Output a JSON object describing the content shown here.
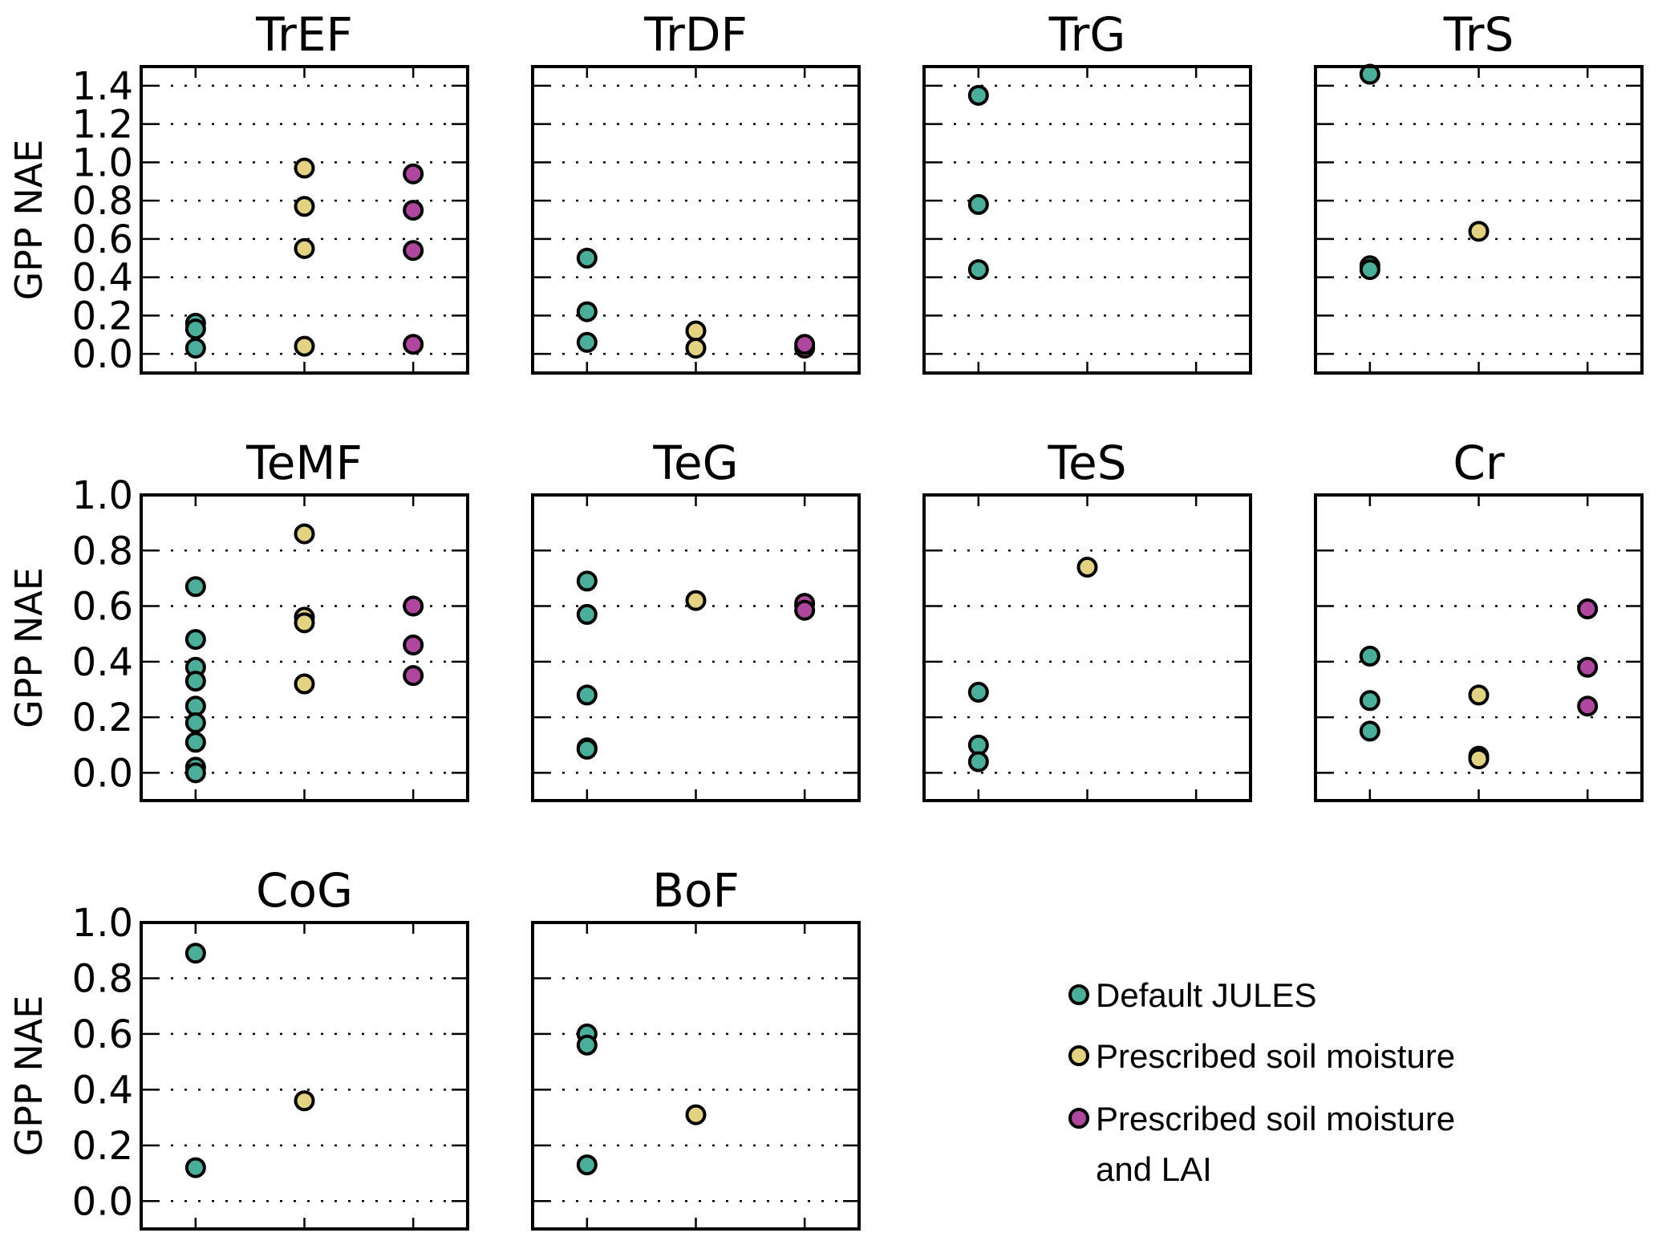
{
  "chart_data": {
    "type": "scatter",
    "title": "",
    "ylabel": "GPP NAE",
    "grid": "horizontal dotted",
    "categories": [
      "Default JULES",
      "Prescribed soil moisture",
      "Prescribed soil moisture and LAI"
    ],
    "legend": {
      "placement": "bottom-right",
      "entries": [
        {
          "label_line1": "Default JULES",
          "label_line2": "",
          "color": "#4aae9b"
        },
        {
          "label_line1": "Prescribed soil moisture",
          "label_line2": "",
          "color": "#e3d282"
        },
        {
          "label_line1": "Prescribed soil moisture",
          "label_line2": "and LAI",
          "color": "#b0479e"
        }
      ]
    },
    "panels": [
      {
        "title": "TrEF",
        "ylim": [
          -0.1,
          1.5
        ],
        "yticks": [
          "0.0",
          "0.2",
          "0.4",
          "0.6",
          "0.8",
          "1.0",
          "1.2",
          "1.4"
        ],
        "show_yticklabels": true,
        "series": [
          {
            "name": "Default JULES",
            "values": [
              0.16,
              0.13,
              0.03
            ]
          },
          {
            "name": "Prescribed soil moisture",
            "values": [
              0.97,
              0.77,
              0.55,
              0.04
            ]
          },
          {
            "name": "Prescribed soil moisture and LAI",
            "values": [
              0.94,
              0.75,
              0.54,
              0.05
            ]
          }
        ]
      },
      {
        "title": "TrDF",
        "ylim": [
          -0.1,
          1.5
        ],
        "yticks": [
          "0.0",
          "0.2",
          "0.4",
          "0.6",
          "0.8",
          "1.0",
          "1.2",
          "1.4"
        ],
        "show_yticklabels": false,
        "series": [
          {
            "name": "Default JULES",
            "values": [
              0.5,
              0.22,
              0.06
            ]
          },
          {
            "name": "Prescribed soil moisture",
            "values": [
              0.12,
              0.03
            ]
          },
          {
            "name": "Prescribed soil moisture and LAI",
            "values": [
              0.03,
              0.05
            ]
          }
        ]
      },
      {
        "title": "TrG",
        "ylim": [
          -0.1,
          1.5
        ],
        "yticks": [
          "0.0",
          "0.2",
          "0.4",
          "0.6",
          "0.8",
          "1.0",
          "1.2",
          "1.4"
        ],
        "show_yticklabels": false,
        "series": [
          {
            "name": "Default JULES",
            "values": [
              1.35,
              0.78,
              0.44
            ]
          },
          {
            "name": "Prescribed soil moisture",
            "values": []
          },
          {
            "name": "Prescribed soil moisture and LAI",
            "values": []
          }
        ]
      },
      {
        "title": "TrS",
        "ylim": [
          -0.1,
          1.5
        ],
        "yticks": [
          "0.0",
          "0.2",
          "0.4",
          "0.6",
          "0.8",
          "1.0",
          "1.2",
          "1.4"
        ],
        "show_yticklabels": false,
        "series": [
          {
            "name": "Default JULES",
            "values": [
              1.46,
              0.46,
              0.44
            ]
          },
          {
            "name": "Prescribed soil moisture",
            "values": [
              0.64
            ]
          },
          {
            "name": "Prescribed soil moisture and LAI",
            "values": []
          }
        ]
      },
      {
        "title": "TeMF",
        "ylim": [
          -0.1,
          1.0
        ],
        "yticks": [
          "0.0",
          "0.2",
          "0.4",
          "0.6",
          "0.8",
          "1.0"
        ],
        "show_yticklabels": true,
        "series": [
          {
            "name": "Default JULES",
            "values": [
              0.67,
              0.48,
              0.38,
              0.33,
              0.24,
              0.18,
              0.11,
              0.02,
              0.0
            ]
          },
          {
            "name": "Prescribed soil moisture",
            "values": [
              0.86,
              0.56,
              0.54,
              0.32
            ]
          },
          {
            "name": "Prescribed soil moisture and LAI",
            "values": [
              0.6,
              0.46,
              0.35
            ]
          }
        ]
      },
      {
        "title": "TeG",
        "ylim": [
          -0.1,
          1.0
        ],
        "yticks": [
          "0.0",
          "0.2",
          "0.4",
          "0.6",
          "0.8",
          "1.0"
        ],
        "show_yticklabels": false,
        "series": [
          {
            "name": "Default JULES",
            "values": [
              0.69,
              0.57,
              0.28,
              0.09,
              0.085
            ]
          },
          {
            "name": "Prescribed soil moisture",
            "values": [
              0.62
            ]
          },
          {
            "name": "Prescribed soil moisture and LAI",
            "values": [
              0.61,
              0.585
            ]
          }
        ]
      },
      {
        "title": "TeS",
        "ylim": [
          -0.1,
          1.0
        ],
        "yticks": [
          "0.0",
          "0.2",
          "0.4",
          "0.6",
          "0.8",
          "1.0"
        ],
        "show_yticklabels": false,
        "series": [
          {
            "name": "Default JULES",
            "values": [
              0.29,
              0.1,
              0.04
            ]
          },
          {
            "name": "Prescribed soil moisture",
            "values": [
              0.74
            ]
          },
          {
            "name": "Prescribed soil moisture and LAI",
            "values": []
          }
        ]
      },
      {
        "title": "Cr",
        "ylim": [
          -0.1,
          1.0
        ],
        "yticks": [
          "0.0",
          "0.2",
          "0.4",
          "0.6",
          "0.8",
          "1.0"
        ],
        "show_yticklabels": false,
        "series": [
          {
            "name": "Default JULES",
            "values": [
              0.42,
              0.26,
              0.15
            ]
          },
          {
            "name": "Prescribed soil moisture",
            "values": [
              0.28,
              0.06,
              0.05
            ]
          },
          {
            "name": "Prescribed soil moisture and LAI",
            "values": [
              0.59,
              0.38,
              0.24
            ]
          }
        ]
      },
      {
        "title": "CoG",
        "ylim": [
          -0.1,
          1.0
        ],
        "yticks": [
          "0.0",
          "0.2",
          "0.4",
          "0.6",
          "0.8",
          "1.0"
        ],
        "show_yticklabels": true,
        "series": [
          {
            "name": "Default JULES",
            "values": [
              0.89,
              0.12
            ]
          },
          {
            "name": "Prescribed soil moisture",
            "values": [
              0.36
            ]
          },
          {
            "name": "Prescribed soil moisture and LAI",
            "values": []
          }
        ]
      },
      {
        "title": "BoF",
        "ylim": [
          -0.1,
          1.0
        ],
        "yticks": [
          "0.0",
          "0.2",
          "0.4",
          "0.6",
          "0.8",
          "1.0"
        ],
        "show_yticklabels": false,
        "series": [
          {
            "name": "Default JULES",
            "values": [
              0.6,
              0.56,
              0.13
            ]
          },
          {
            "name": "Prescribed soil moisture",
            "values": [
              0.31
            ]
          },
          {
            "name": "Prescribed soil moisture and LAI",
            "values": []
          }
        ]
      }
    ]
  }
}
